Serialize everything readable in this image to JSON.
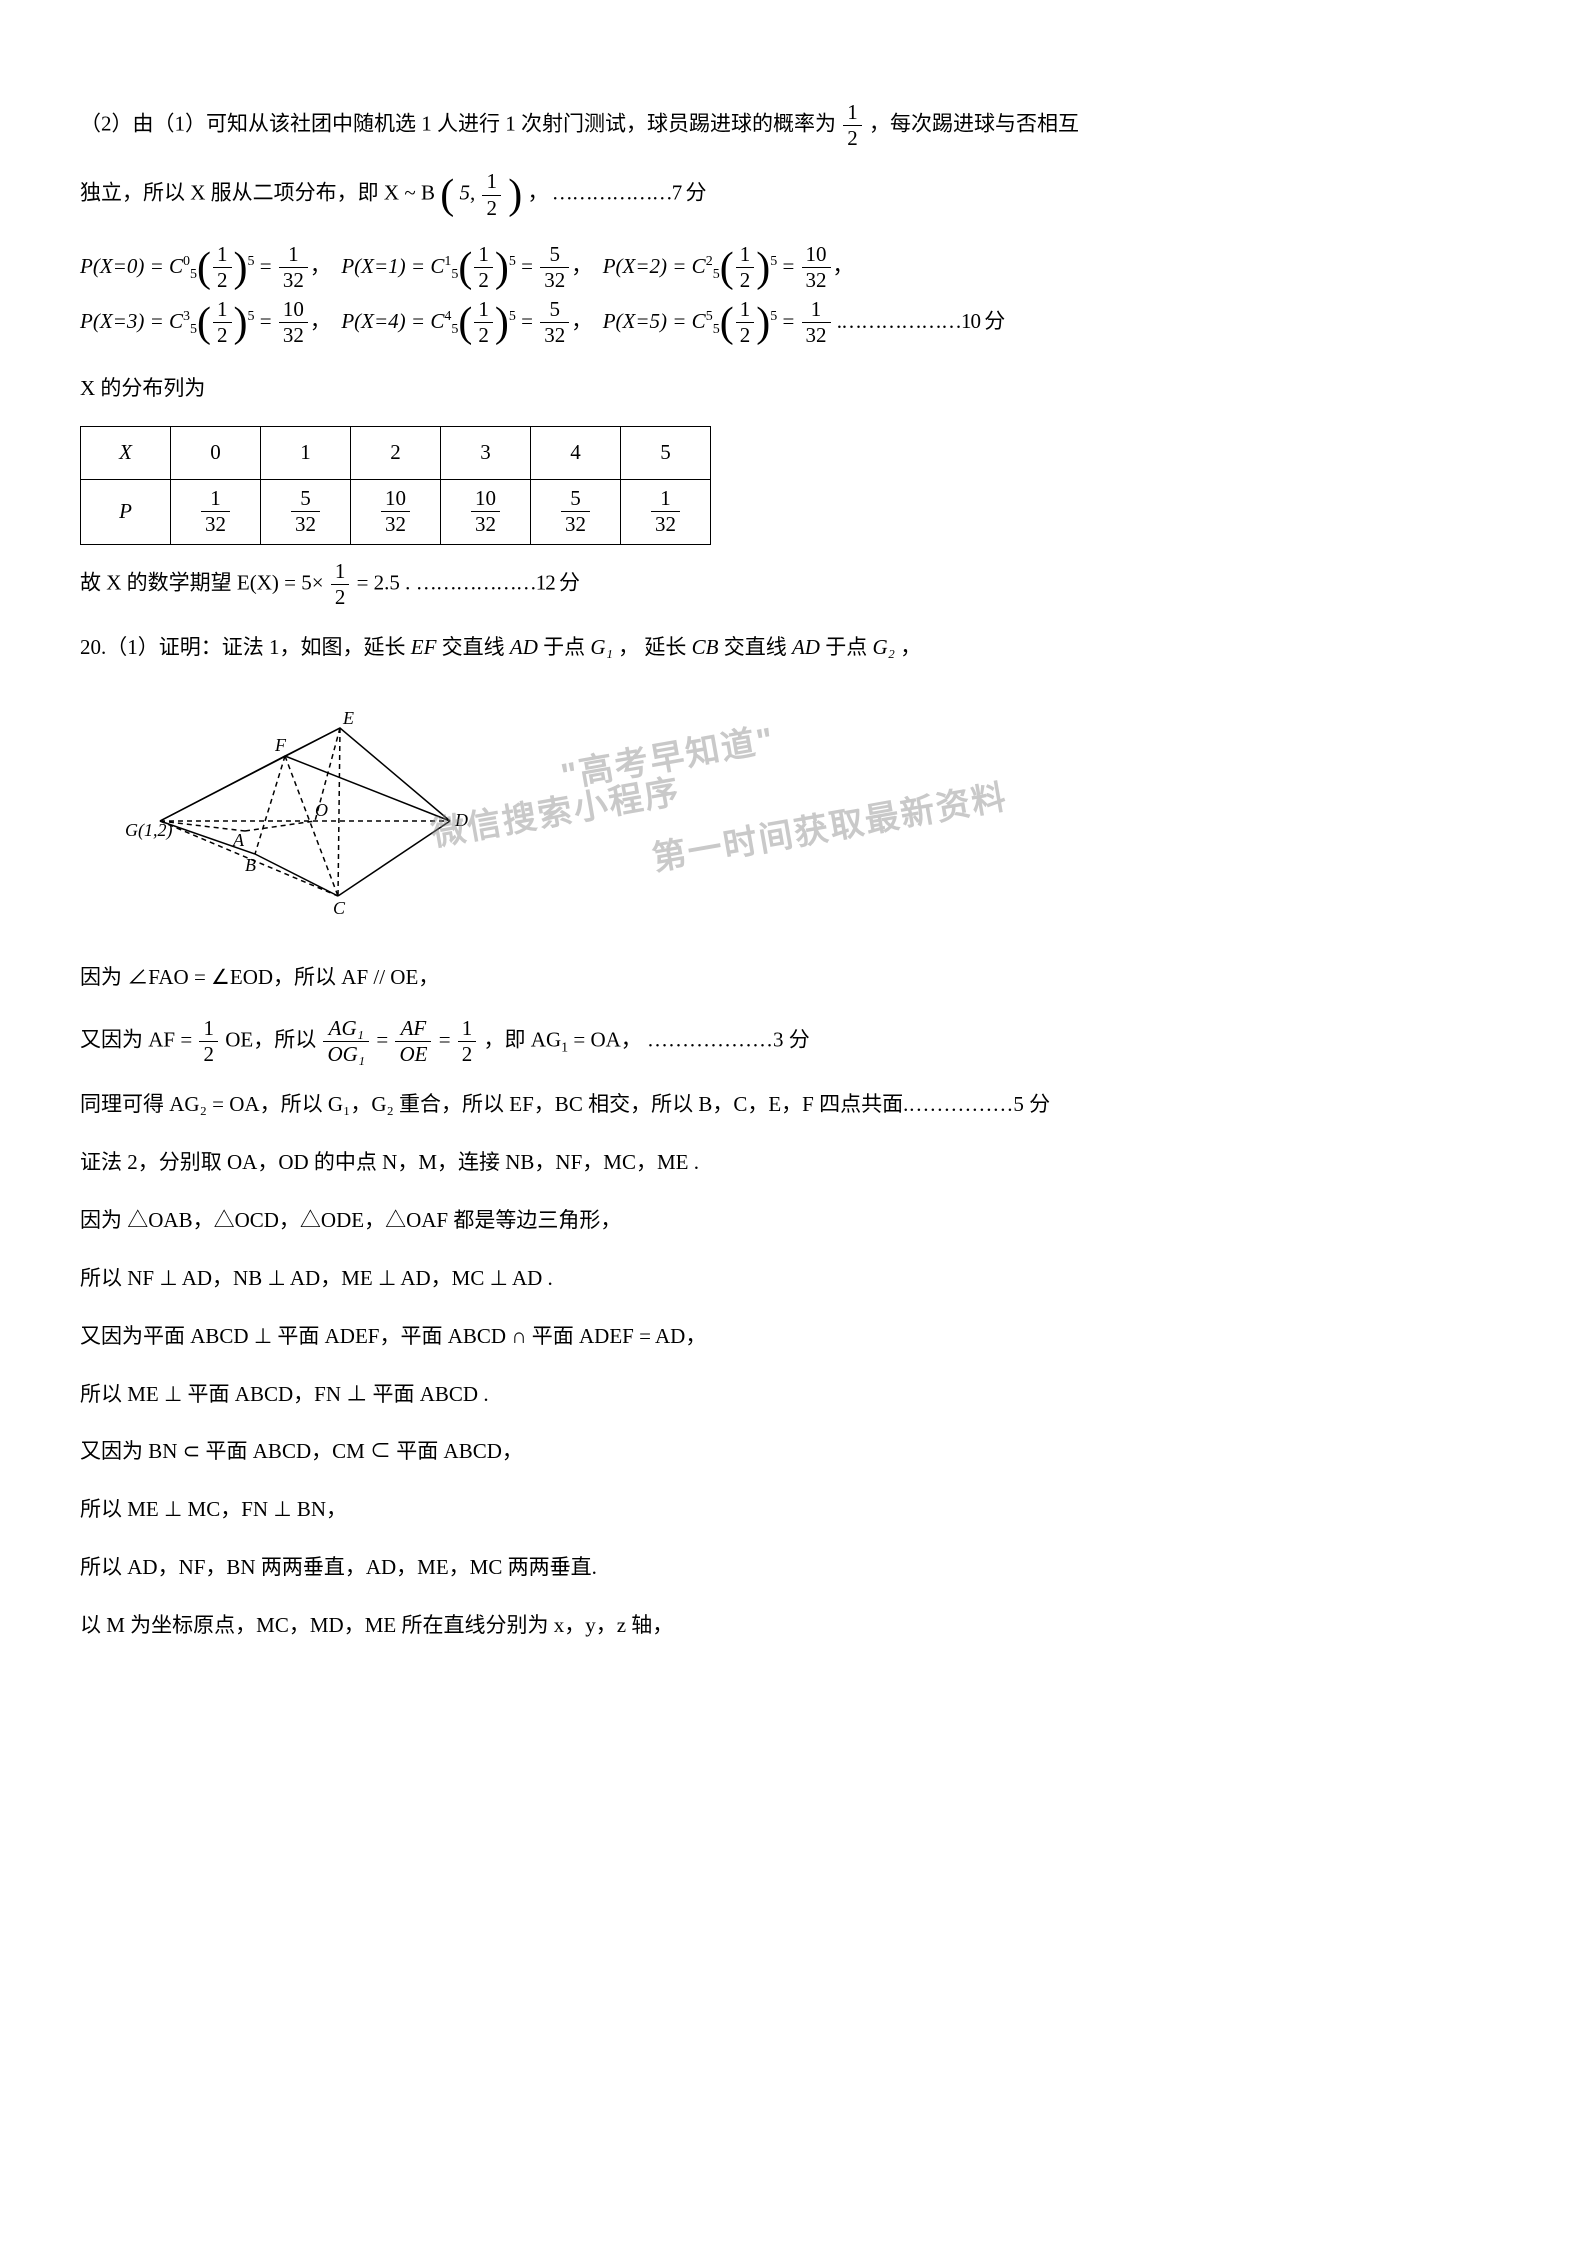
{
  "paragraphs": {
    "p1_pre": "（2）由（1）可知从该社团中随机选 1 人进行 1 次射门测试，球员踢进球的概率为",
    "p1_post": "，每次踢进球与否相互",
    "p2_pre": "独立，所以 X 服从二项分布，即 X ~ B",
    "p2_dots_score": "， ………………7 分",
    "dist_label": "X 的分布列为",
    "exp_pre": "故 X 的数学期望 E(X) = 5×",
    "exp_mid": " = 2.5 .",
    "exp_dots": "………………12 分",
    "q20_pre": "20.（1）证明：证法 1，如图，延长",
    "q20_mid1": "交直线",
    "q20_at": "于点",
    "q20_ext2": "延长",
    "q20_mid3": "交直线",
    "p_fao": "因为 ∠FAO = ∠EOD，所以 AF // OE，",
    "p_af_pre": "又因为 AF = ",
    "p_af_oe": "OE，所以",
    "p_af_eq": "，即 AG",
    "p_af_eq2": " = OA， ………………3 分",
    "p_coplane": "同理可得 AG₂ = OA，所以 G₁，G₂ 重合，所以 EF，BC 相交，所以 B，C，E，F 四点共面.……………5 分",
    "p_m2_1": "证法 2，分别取 OA，OD 的中点 N，M，连接 NB，NF，MC，ME .",
    "p_m2_2": "因为 △OAB，△OCD，△ODE，△OAF 都是等边三角形，",
    "p_m2_3": "所以 NF ⊥ AD，NB ⊥ AD，ME ⊥ AD，MC ⊥ AD .",
    "p_m2_4": "又因为平面 ABCD ⊥ 平面 ADEF，平面 ABCD ∩ 平面 ADEF = AD，",
    "p_m2_5": "所以 ME ⊥ 平面 ABCD，FN ⊥ 平面 ABCD .",
    "p_m2_6": "又因为 BN ⊂ 平面 ABCD，CM ⊂ 平面 ABCD，",
    "p_m2_7": "所以 ME ⊥ MC，FN ⊥ BN，",
    "p_m2_8": "所以 AD，NF，BN 两两垂直，AD，ME，MC 两两垂直.",
    "p_m2_9": "以 M 为坐标原点，MC，MD，ME 所在直线分别为 x，y，z 轴，"
  },
  "fractions": {
    "half": {
      "num": "1",
      "den": "2"
    },
    "one32": {
      "num": "1",
      "den": "32"
    },
    "five32": {
      "num": "5",
      "den": "32"
    },
    "ten32": {
      "num": "10",
      "den": "32"
    },
    "ag_og": {
      "num": "AG₁",
      "den": "OG₁"
    },
    "af_oe": {
      "num": "AF",
      "den": "OE"
    }
  },
  "binom": {
    "n": "5"
  },
  "prob_terms": [
    {
      "label": "P(X=0) = C",
      "c_sub": "5",
      "c_sup": "0",
      "res_num": "1",
      "res_den": "32"
    },
    {
      "label": "P(X=1) = C",
      "c_sub": "5",
      "c_sup": "1",
      "res_num": "5",
      "res_den": "32"
    },
    {
      "label": "P(X=2) = C",
      "c_sub": "5",
      "c_sup": "2",
      "res_num": "10",
      "res_den": "32"
    },
    {
      "label": "P(X=3) = C",
      "c_sub": "5",
      "c_sup": "3",
      "res_num": "10",
      "res_den": "32"
    },
    {
      "label": "P(X=4) = C",
      "c_sub": "5",
      "c_sup": "4",
      "res_num": "5",
      "res_den": "32"
    },
    {
      "label": "P(X=5) = C",
      "c_sub": "5",
      "c_sup": "5",
      "res_num": "1",
      "res_den": "32"
    }
  ],
  "prob_line2_score": " .………………10 分",
  "table": {
    "var_label": "X",
    "prob_label": "P",
    "x_values": [
      "0",
      "1",
      "2",
      "3",
      "4",
      "5"
    ],
    "p_values": [
      {
        "num": "1",
        "den": "32"
      },
      {
        "num": "5",
        "den": "32"
      },
      {
        "num": "10",
        "den": "32"
      },
      {
        "num": "10",
        "den": "32"
      },
      {
        "num": "5",
        "den": "32"
      },
      {
        "num": "1",
        "den": "32"
      }
    ]
  },
  "q20_parts": {
    "ef": "EF",
    "ad": "AD",
    "g1": "G₁",
    "cb": "CB",
    "g2": "G₂",
    "comma": "，"
  },
  "watermarks": {
    "a": "\"高考早知道\"",
    "b": "微信搜索小程序",
    "c": "第一时间获取最新资料"
  },
  "diagram": {
    "labels": {
      "E": "E",
      "F": "F",
      "A": "A",
      "B": "B",
      "C": "C",
      "D": "D",
      "O": "O",
      "G": "G(1,2)"
    },
    "stroke": "#000000",
    "fill": "none",
    "dash": "5,4"
  }
}
